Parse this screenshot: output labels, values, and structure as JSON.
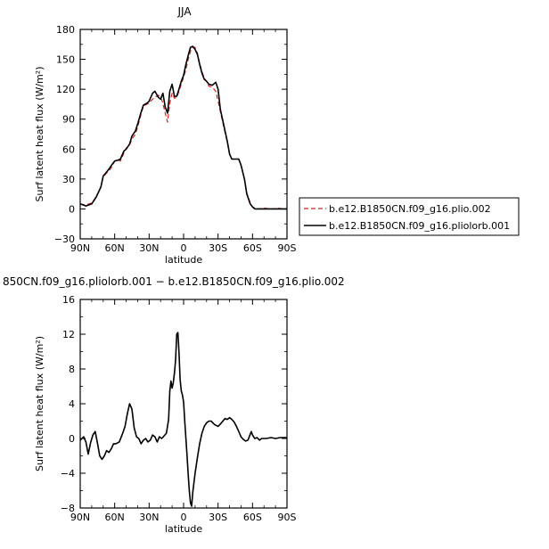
{
  "chart_data": [
    {
      "type": "line",
      "title": "JJA",
      "xlabel": "latitude",
      "ylabel": "Surf latent heat flux  (W/m²)",
      "xlim": [
        90,
        -90
      ],
      "ylim": [
        -30,
        180
      ],
      "xticks": [
        90,
        60,
        30,
        0,
        -30,
        -60,
        -90
      ],
      "xtick_labels": [
        "90N",
        "60N",
        "30N",
        "0",
        "30S",
        "60S",
        "90S"
      ],
      "yticks": [
        -30,
        0,
        30,
        60,
        90,
        120,
        150,
        180
      ],
      "ytick_labels": [
        "−30",
        "0",
        "30",
        "60",
        "90",
        "120",
        "150",
        "180"
      ],
      "legend_position": "right",
      "series": [
        {
          "name": "b.e12.B1850CN.f09_g16.plio.002",
          "color": "#d62020",
          "dash": "dashed",
          "x": [
            90,
            85,
            80,
            76,
            72,
            70,
            67,
            65,
            62,
            60,
            57,
            55,
            52,
            50,
            47,
            45,
            42,
            40,
            37,
            35,
            32,
            30,
            27,
            25,
            22,
            20,
            18,
            16,
            14,
            12,
            10,
            8,
            6,
            4,
            2,
            0,
            -2,
            -4,
            -6,
            -8,
            -10,
            -12,
            -14,
            -16,
            -18,
            -20,
            -22,
            -25,
            -28,
            -30,
            -32,
            -35,
            -38,
            -40,
            -42,
            -45,
            -48,
            -50,
            -53,
            -55,
            -58,
            -60,
            -62,
            -64,
            -66,
            -70,
            -74,
            -78,
            -82,
            -86,
            -90
          ],
          "y": [
            5,
            4,
            6,
            12,
            22,
            32,
            36,
            38,
            43,
            48,
            49,
            48,
            56,
            61,
            64,
            70,
            75,
            82,
            95,
            103,
            105,
            106,
            110,
            112,
            114,
            112,
            106,
            96,
            87,
            106,
            116,
            111,
            112,
            118,
            125,
            132,
            140,
            150,
            158,
            162,
            162,
            156,
            146,
            138,
            131,
            128,
            123,
            122,
            118,
            108,
            98,
            82,
            67,
            55,
            50,
            50,
            50,
            44,
            30,
            16,
            6,
            2,
            1,
            0,
            0,
            1,
            0,
            0,
            1,
            0,
            0
          ]
        },
        {
          "name": "b.e12.B1850CN.f09_g16.pliolorb.001",
          "color": "#000000",
          "dash": "solid",
          "x": [
            90,
            85,
            80,
            76,
            72,
            70,
            67,
            65,
            62,
            60,
            57,
            55,
            52,
            50,
            47,
            45,
            42,
            40,
            37,
            35,
            32,
            30,
            27,
            25,
            22,
            20,
            18,
            16,
            14,
            12,
            10,
            8,
            6,
            4,
            2,
            0,
            -2,
            -4,
            -6,
            -8,
            -10,
            -12,
            -14,
            -16,
            -18,
            -20,
            -22,
            -25,
            -28,
            -30,
            -32,
            -35,
            -38,
            -40,
            -42,
            -45,
            -48,
            -50,
            -53,
            -55,
            -58,
            -60,
            -62,
            -64,
            -66,
            -70,
            -74,
            -78,
            -82,
            -86,
            -90
          ],
          "y": [
            5,
            3,
            5,
            12,
            22,
            33,
            37,
            40,
            45,
            48,
            49,
            50,
            58,
            60,
            65,
            73,
            78,
            85,
            97,
            104,
            106,
            108,
            116,
            118,
            112,
            110,
            116,
            102,
            96,
            118,
            125,
            113,
            113,
            120,
            128,
            134,
            145,
            154,
            162,
            163,
            160,
            155,
            145,
            136,
            130,
            128,
            125,
            124,
            127,
            120,
            100,
            84,
            68,
            55,
            50,
            50,
            50,
            44,
            30,
            15,
            5,
            2,
            0,
            0,
            0,
            0,
            0,
            0,
            0,
            0,
            0
          ]
        }
      ]
    },
    {
      "type": "line",
      "title": "850CN.f09_g16.pliolorb.001 − b.e12.B1850CN.f09_g16.plio.002",
      "xlabel": "latitude",
      "ylabel": "Surf latent heat flux  (W/m²)",
      "xlim": [
        90,
        -90
      ],
      "ylim": [
        -8,
        16
      ],
      "xticks": [
        90,
        60,
        30,
        0,
        -30,
        -60,
        -90
      ],
      "xtick_labels": [
        "90N",
        "60N",
        "30N",
        "0",
        "30S",
        "60S",
        "90S"
      ],
      "yticks": [
        -8,
        -4,
        0,
        4,
        8,
        12,
        16
      ],
      "ytick_labels": [
        "−8",
        "−4",
        "0",
        "4",
        "8",
        "12",
        "16"
      ],
      "series": [
        {
          "color": "#000000",
          "dash": "solid",
          "x": [
            90,
            87,
            85,
            83,
            81,
            79,
            77,
            75,
            73,
            71,
            69,
            67,
            65,
            63,
            61,
            59,
            56,
            53,
            51,
            49,
            47,
            45,
            43,
            41,
            39,
            37,
            35,
            33,
            31,
            29,
            27,
            25,
            23,
            21,
            19,
            17,
            15,
            13,
            12,
            11,
            10,
            9,
            8,
            7,
            6,
            5,
            4,
            3,
            2,
            1,
            0,
            -1,
            -2,
            -3,
            -4,
            -5,
            -6,
            -7,
            -8,
            -10,
            -12,
            -14,
            -16,
            -18,
            -20,
            -22,
            -24,
            -27,
            -30,
            -33,
            -36,
            -38,
            -40,
            -42,
            -44,
            -46,
            -48,
            -50,
            -52,
            -54,
            -56,
            -58,
            -59,
            -60,
            -62,
            -64,
            -66,
            -68,
            -72,
            -76,
            -80,
            -84,
            -90
          ],
          "y": [
            -0.2,
            0.2,
            -0.4,
            -1.8,
            -0.5,
            0.4,
            0.8,
            -0.5,
            -2.0,
            -2.4,
            -2.0,
            -1.4,
            -1.6,
            -1.2,
            -0.6,
            -0.6,
            -0.4,
            0.6,
            1.4,
            2.8,
            4.0,
            3.4,
            1.2,
            0.2,
            0.0,
            -0.6,
            -0.2,
            0.0,
            -0.4,
            -0.2,
            0.4,
            0.2,
            -0.4,
            0.2,
            0.0,
            0.3,
            0.6,
            2.2,
            5.4,
            6.6,
            5.8,
            6.4,
            7.5,
            9.0,
            12.0,
            12.2,
            10.0,
            6.8,
            5.5,
            5.0,
            4.2,
            2.0,
            0.0,
            -2.0,
            -4.2,
            -6.0,
            -7.4,
            -7.8,
            -6.2,
            -4.0,
            -2.2,
            -0.6,
            0.6,
            1.4,
            1.8,
            2.0,
            2.0,
            1.6,
            1.4,
            1.8,
            2.3,
            2.2,
            2.4,
            2.2,
            1.9,
            1.4,
            0.8,
            0.2,
            -0.1,
            -0.3,
            -0.2,
            0.5,
            0.8,
            0.4,
            0.0,
            0.1,
            -0.2,
            0.0,
            0.0,
            0.1,
            0.0,
            0.1,
            0.1
          ]
        }
      ]
    }
  ]
}
